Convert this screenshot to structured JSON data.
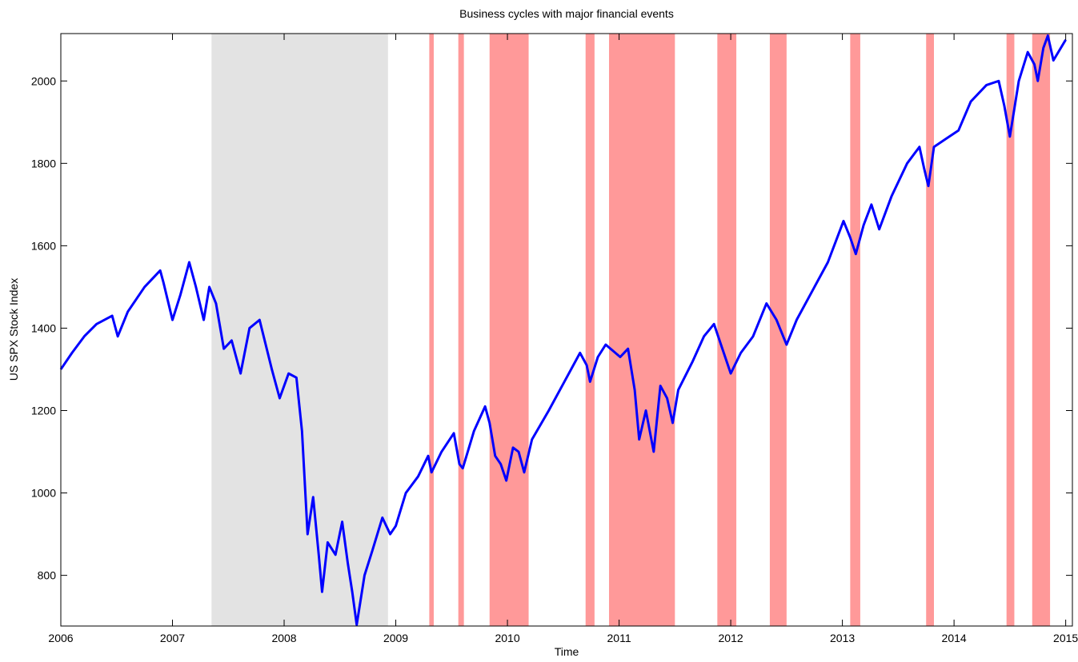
{
  "chart_data": {
    "type": "line",
    "title": "Business cycles with major financial events",
    "xlabel": "Time",
    "ylabel": "US SPX Stock Index",
    "xlim": [
      2006,
      2015.06
    ],
    "ylim": [
      677,
      2115
    ],
    "xticks": [
      2006,
      2007,
      2008,
      2009,
      2010,
      2011,
      2012,
      2013,
      2014,
      2015
    ],
    "yticks": [
      800,
      1000,
      1200,
      1400,
      1600,
      1800,
      2000
    ],
    "grid": false,
    "recession_periods": [
      [
        2007.35,
        2008.93
      ]
    ],
    "recession_color": "#e3e3e3",
    "event_periods": [
      [
        2009.3,
        2009.34
      ],
      [
        2009.56,
        2009.61
      ],
      [
        2009.84,
        2010.19
      ],
      [
        2010.7,
        2010.78
      ],
      [
        2010.91,
        2011.5
      ],
      [
        2011.88,
        2012.05
      ],
      [
        2012.35,
        2012.5
      ],
      [
        2013.07,
        2013.16
      ],
      [
        2013.75,
        2013.82
      ],
      [
        2014.47,
        2014.54
      ],
      [
        2014.7,
        2014.86
      ]
    ],
    "event_color": "#ff9999",
    "series": [
      {
        "name": "US SPX Stock Index",
        "color": "#0000ff",
        "x": [
          2006.0,
          2006.1,
          2006.21,
          2006.32,
          2006.46,
          2006.51,
          2006.6,
          2006.75,
          2006.89,
          2006.92,
          2007.0,
          2007.07,
          2007.15,
          2007.21,
          2007.28,
          2007.33,
          2007.39,
          2007.46,
          2007.53,
          2007.61,
          2007.69,
          2007.78,
          2007.89,
          2007.96,
          2008.04,
          2008.11,
          2008.16,
          2008.21,
          2008.26,
          2008.31,
          2008.34,
          2008.39,
          2008.46,
          2008.52,
          2008.57,
          2008.61,
          2008.65,
          2008.72,
          2008.79,
          2008.88,
          2008.95,
          2009.0,
          2009.09,
          2009.2,
          2009.29,
          2009.32,
          2009.41,
          2009.52,
          2009.57,
          2009.6,
          2009.7,
          2009.8,
          2009.84,
          2009.89,
          2009.94,
          2009.99,
          2010.05,
          2010.1,
          2010.15,
          2010.22,
          2010.37,
          2010.51,
          2010.65,
          2010.71,
          2010.74,
          2010.81,
          2010.88,
          2011.01,
          2011.08,
          2011.14,
          2011.18,
          2011.24,
          2011.31,
          2011.37,
          2011.43,
          2011.48,
          2011.53,
          2011.66,
          2011.76,
          2011.85,
          2011.9,
          2012.0,
          2012.09,
          2012.2,
          2012.32,
          2012.41,
          2012.5,
          2012.59,
          2012.73,
          2012.87,
          2013.01,
          2013.07,
          2013.12,
          2013.19,
          2013.26,
          2013.33,
          2013.44,
          2013.58,
          2013.69,
          2013.73,
          2013.77,
          2013.82,
          2013.93,
          2014.04,
          2014.15,
          2014.29,
          2014.4,
          2014.45,
          2014.5,
          2014.58,
          2014.66,
          2014.72,
          2014.75,
          2014.8,
          2014.84,
          2014.89,
          2015.0
        ],
        "values": [
          1300,
          1340,
          1380,
          1410,
          1430,
          1380,
          1440,
          1500,
          1540,
          1510,
          1420,
          1480,
          1560,
          1500,
          1420,
          1500,
          1460,
          1350,
          1370,
          1290,
          1400,
          1420,
          1300,
          1230,
          1290,
          1280,
          1150,
          900,
          990,
          850,
          760,
          880,
          850,
          930,
          830,
          760,
          680,
          800,
          860,
          940,
          900,
          920,
          1000,
          1040,
          1090,
          1050,
          1100,
          1145,
          1070,
          1060,
          1150,
          1210,
          1170,
          1090,
          1070,
          1030,
          1110,
          1100,
          1050,
          1130,
          1200,
          1270,
          1340,
          1310,
          1270,
          1330,
          1360,
          1330,
          1350,
          1250,
          1130,
          1200,
          1100,
          1260,
          1230,
          1170,
          1250,
          1320,
          1380,
          1410,
          1370,
          1290,
          1340,
          1380,
          1460,
          1420,
          1360,
          1420,
          1490,
          1560,
          1660,
          1620,
          1580,
          1650,
          1700,
          1640,
          1720,
          1800,
          1840,
          1790,
          1745,
          1840,
          1860,
          1880,
          1950,
          1990,
          2000,
          1940,
          1865,
          2000,
          2070,
          2040,
          2000,
          2080,
          2110,
          2050,
          2100
        ]
      }
    ]
  }
}
